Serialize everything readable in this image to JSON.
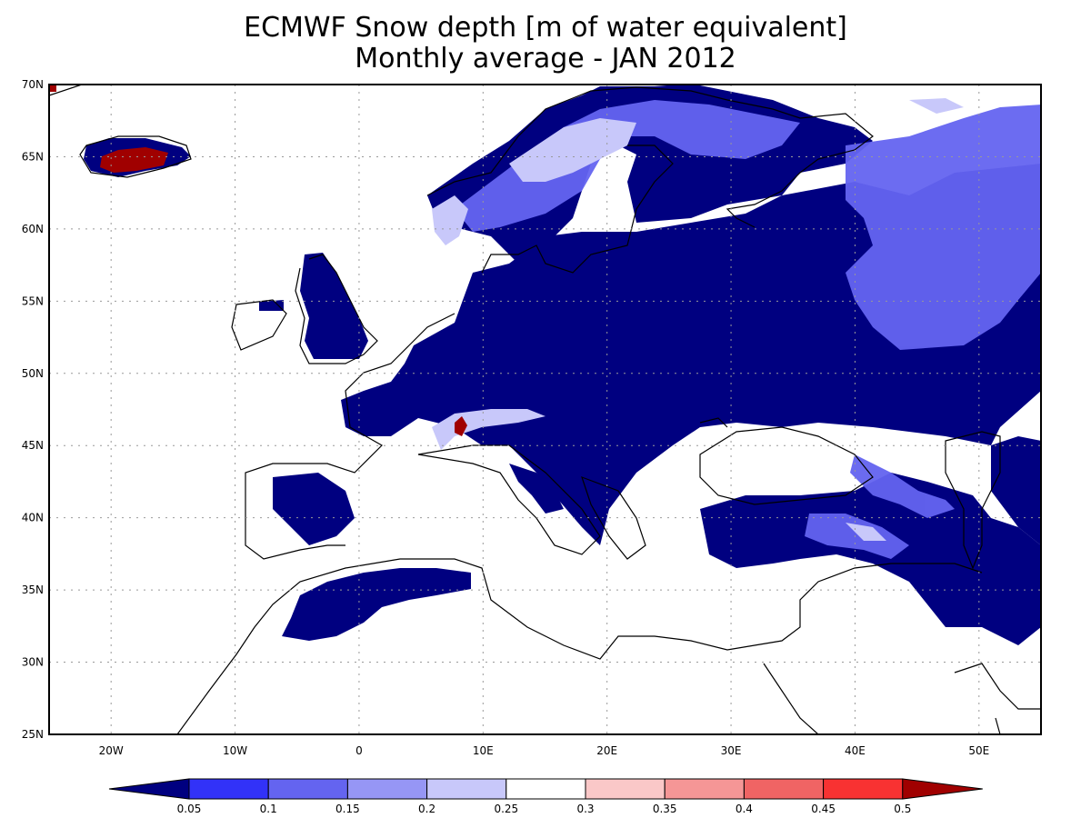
{
  "title_line1": "ECMWF Snow depth [m of water equivalent]",
  "title_line2": "Monthly average - JAN 2012",
  "map": {
    "lon_range": [
      -25,
      55
    ],
    "lat_range": [
      25,
      70
    ],
    "lon_ticks": [
      {
        "value": -20,
        "label": "20W"
      },
      {
        "value": -10,
        "label": "10W"
      },
      {
        "value": 0,
        "label": "0"
      },
      {
        "value": 10,
        "label": "10E"
      },
      {
        "value": 20,
        "label": "20E"
      },
      {
        "value": 30,
        "label": "30E"
      },
      {
        "value": 40,
        "label": "40E"
      },
      {
        "value": 50,
        "label": "50E"
      }
    ],
    "lat_ticks": [
      {
        "value": 25,
        "label": "25N"
      },
      {
        "value": 30,
        "label": "30N"
      },
      {
        "value": 35,
        "label": "35N"
      },
      {
        "value": 40,
        "label": "40N"
      },
      {
        "value": 45,
        "label": "45N"
      },
      {
        "value": 50,
        "label": "50N"
      },
      {
        "value": 55,
        "label": "55N"
      },
      {
        "value": 60,
        "label": "60N"
      },
      {
        "value": 65,
        "label": "65N"
      },
      {
        "value": 70,
        "label": "70N"
      }
    ],
    "grid": true
  },
  "colorbar": {
    "labels": [
      "0.05",
      "0.1",
      "0.15",
      "0.2",
      "0.25",
      "0.3",
      "0.35",
      "0.4",
      "0.45",
      "0.5"
    ],
    "colors": [
      "#000080",
      "#3232f8",
      "#6464f0",
      "#9696f5",
      "#c8c8fa",
      "#ffffff",
      "#fac8c8",
      "#f59696",
      "#f06464",
      "#f83232",
      "#a00000"
    ]
  }
}
